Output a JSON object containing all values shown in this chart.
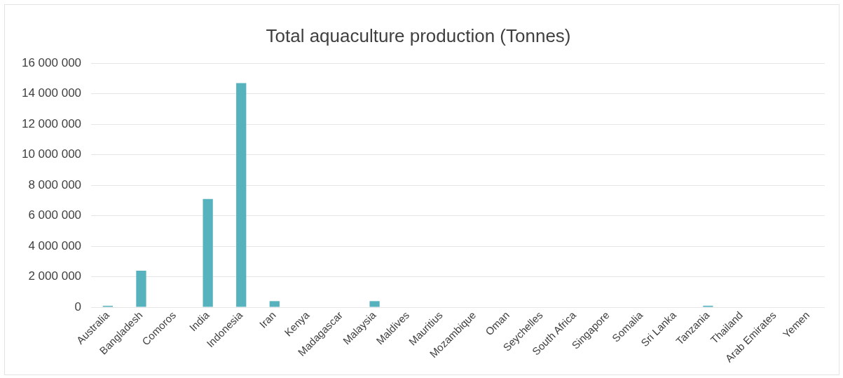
{
  "chart_data": {
    "type": "bar",
    "title": "Total aquaculture production (Tonnes)",
    "categories": [
      "Australia",
      "Bangladesh",
      "Comoros",
      "India",
      "Indonesia",
      "Iran",
      "Kenya",
      "Madagascar",
      "Malaysia",
      "Maldives",
      "Mauritius",
      "Mozambique",
      "Oman",
      "Seychelles",
      "South Africa",
      "Singapore",
      "Somalia",
      "Sri Lanka",
      "Tanzania",
      "Thailand",
      "Arab Emirates",
      "Yemen"
    ],
    "values": [
      100000,
      2400000,
      0,
      7100000,
      14700000,
      400000,
      0,
      0,
      400000,
      0,
      0,
      0,
      0,
      0,
      0,
      0,
      0,
      0,
      100000,
      0,
      0,
      0
    ],
    "color": "#56b3bd",
    "ylim": [
      0,
      16000000
    ],
    "yticks": [
      0,
      2000000,
      4000000,
      6000000,
      8000000,
      10000000,
      12000000,
      14000000,
      16000000
    ],
    "grid": "y",
    "legend": false
  }
}
